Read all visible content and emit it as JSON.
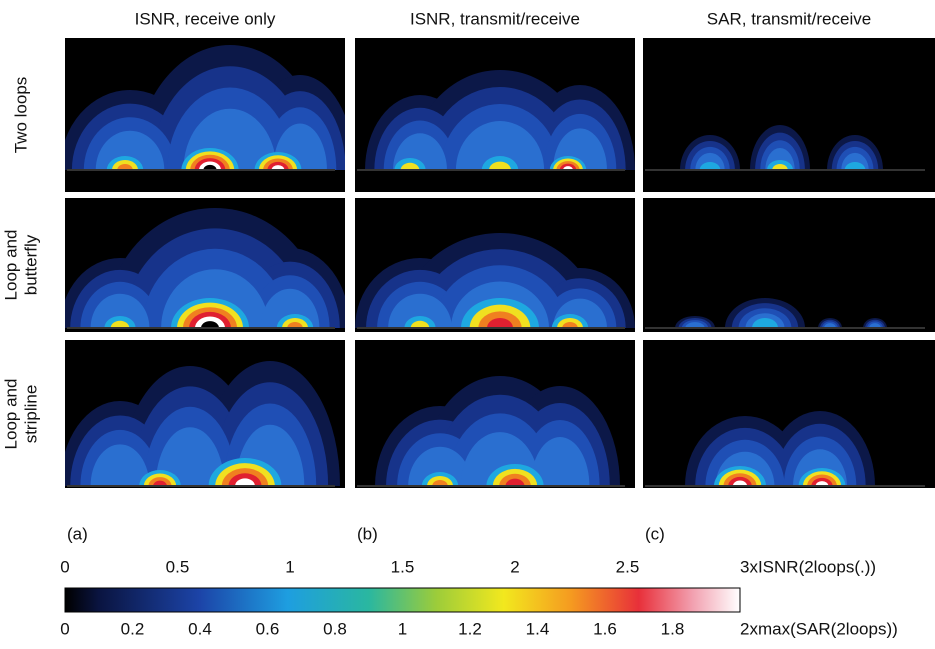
{
  "figure": {
    "column_titles": [
      "ISNR, receive only",
      "ISNR, transmit/receive",
      "SAR, transmit/receive"
    ],
    "row_labels": [
      [
        "Two loops"
      ],
      [
        "Loop and",
        "butterfly"
      ],
      [
        "Loop and",
        "stripline"
      ]
    ],
    "panel_labels": [
      "(a)",
      "(b)",
      "(c)"
    ],
    "colorbar": {
      "top_scale": {
        "lim": [
          0,
          3
        ],
        "ticks": [
          0,
          0.5,
          1,
          1.5,
          2,
          2.5
        ],
        "end_label": "3xISNR(2loops(.))"
      },
      "bottom_scale": {
        "lim": [
          0,
          2
        ],
        "ticks": [
          0,
          0.2,
          0.4,
          0.6,
          0.8,
          1,
          1.2,
          1.4,
          1.6,
          1.8
        ],
        "end_label": "2xmax(SAR(2loops))"
      }
    }
  }
}
